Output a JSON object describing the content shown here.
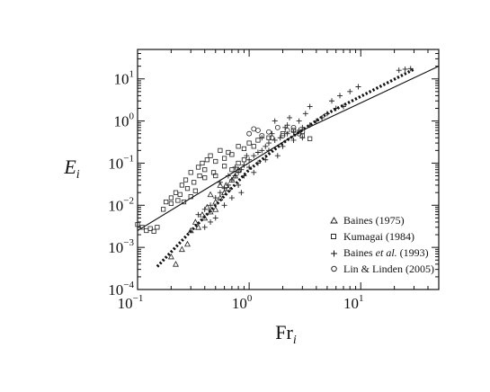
{
  "chart_data": {
    "type": "scatter",
    "xscale": "log",
    "yscale": "log",
    "xlim": [
      0.1,
      50
    ],
    "ylim": [
      0.0001,
      50
    ],
    "x_ticks": [
      {
        "value": 0.1,
        "base": "10",
        "exp": "−1"
      },
      {
        "value": 1,
        "base": "10",
        "exp": "0"
      },
      {
        "value": 10,
        "base": "10",
        "exp": "1"
      }
    ],
    "y_ticks": [
      {
        "value": 0.0001,
        "base": "10",
        "exp": "−4"
      },
      {
        "value": 0.001,
        "base": "10",
        "exp": "−3"
      },
      {
        "value": 0.01,
        "base": "10",
        "exp": "−2"
      },
      {
        "value": 0.1,
        "base": "10",
        "exp": "−1"
      },
      {
        "value": 1,
        "base": "10",
        "exp": "0"
      },
      {
        "value": 10,
        "base": "10",
        "exp": "1"
      }
    ],
    "xlabel": {
      "main": "Fr",
      "sub": "i"
    },
    "ylabel": {
      "main": "E",
      "sub": "i"
    },
    "legend": {
      "placement": "lower-right",
      "entries": [
        {
          "marker": "triangle",
          "text": "Baines (1975)"
        },
        {
          "marker": "square",
          "text": "Kumagai (1984)"
        },
        {
          "marker": "plus",
          "text_before": "Baines ",
          "text_em": "et al.",
          "text_after": " (1993)"
        },
        {
          "marker": "circle",
          "text": "Lin & Linden (2005)"
        }
      ]
    },
    "lines": [
      {
        "style": "solid",
        "x": [
          0.1,
          3,
          50
        ],
        "y": [
          0.0025,
          0.6,
          20
        ]
      },
      {
        "style": "dotted",
        "x": [
          0.15,
          0.5,
          1,
          2,
          5,
          30
        ],
        "y": [
          0.00035,
          0.01,
          0.07,
          0.3,
          1.5,
          17
        ]
      }
    ],
    "series": [
      {
        "marker": "triangle",
        "points": [
          [
            0.2,
            0.0006
          ],
          [
            0.22,
            0.0004
          ],
          [
            0.25,
            0.0009
          ],
          [
            0.28,
            0.0012
          ],
          [
            0.3,
            0.0025
          ],
          [
            0.33,
            0.004
          ],
          [
            0.35,
            0.003
          ],
          [
            0.38,
            0.006
          ],
          [
            0.4,
            0.005
          ],
          [
            0.42,
            0.009
          ],
          [
            0.45,
            0.007
          ],
          [
            0.5,
            0.012
          ],
          [
            0.55,
            0.015
          ],
          [
            0.6,
            0.02
          ],
          [
            0.62,
            0.03
          ],
          [
            0.65,
            0.025
          ],
          [
            0.7,
            0.04
          ],
          [
            0.75,
            0.05
          ],
          [
            0.8,
            0.07
          ],
          [
            0.45,
            0.018
          ],
          [
            0.5,
            0.008
          ],
          [
            0.55,
            0.03
          ]
        ]
      },
      {
        "marker": "square",
        "points": [
          [
            0.1,
            0.0035
          ],
          [
            0.11,
            0.003
          ],
          [
            0.12,
            0.0025
          ],
          [
            0.13,
            0.0028
          ],
          [
            0.14,
            0.0024
          ],
          [
            0.15,
            0.003
          ],
          [
            0.17,
            0.008
          ],
          [
            0.18,
            0.012
          ],
          [
            0.2,
            0.015
          ],
          [
            0.22,
            0.02
          ],
          [
            0.24,
            0.018
          ],
          [
            0.25,
            0.03
          ],
          [
            0.27,
            0.04
          ],
          [
            0.3,
            0.06
          ],
          [
            0.32,
            0.035
          ],
          [
            0.35,
            0.08
          ],
          [
            0.38,
            0.1
          ],
          [
            0.4,
            0.07
          ],
          [
            0.42,
            0.12
          ],
          [
            0.45,
            0.15
          ],
          [
            0.5,
            0.11
          ],
          [
            0.55,
            0.2
          ],
          [
            0.6,
            0.13
          ],
          [
            0.65,
            0.18
          ],
          [
            0.7,
            0.16
          ],
          [
            0.8,
            0.25
          ],
          [
            0.9,
            0.22
          ],
          [
            0.2,
            0.011
          ],
          [
            0.23,
            0.013
          ],
          [
            0.26,
            0.012
          ],
          [
            0.28,
            0.025
          ],
          [
            0.33,
            0.022
          ],
          [
            0.36,
            0.05
          ],
          [
            0.4,
            0.045
          ],
          [
            0.48,
            0.06
          ],
          [
            0.5,
            0.05
          ],
          [
            0.6,
            0.085
          ],
          [
            0.7,
            0.07
          ],
          [
            0.3,
            0.016
          ],
          [
            1.0,
            0.3
          ],
          [
            1.1,
            0.25
          ],
          [
            1.2,
            0.35
          ],
          [
            1.5,
            0.4
          ],
          [
            2.0,
            0.5
          ],
          [
            2.5,
            0.6
          ],
          [
            3.0,
            0.45
          ],
          [
            3.5,
            0.38
          ],
          [
            0.8,
            0.1
          ],
          [
            0.9,
            0.12
          ]
        ]
      },
      {
        "marker": "plus",
        "points": [
          [
            0.35,
            0.006
          ],
          [
            0.4,
            0.008
          ],
          [
            0.45,
            0.01
          ],
          [
            0.5,
            0.015
          ],
          [
            0.55,
            0.02
          ],
          [
            0.6,
            0.025
          ],
          [
            0.65,
            0.03
          ],
          [
            0.7,
            0.04
          ],
          [
            0.75,
            0.05
          ],
          [
            0.8,
            0.06
          ],
          [
            0.85,
            0.07
          ],
          [
            0.9,
            0.09
          ],
          [
            1.0,
            0.12
          ],
          [
            1.1,
            0.15
          ],
          [
            1.2,
            0.18
          ],
          [
            1.3,
            0.2
          ],
          [
            1.4,
            0.25
          ],
          [
            1.5,
            0.3
          ],
          [
            1.7,
            0.35
          ],
          [
            1.9,
            0.4
          ],
          [
            2.2,
            0.5
          ],
          [
            2.5,
            0.55
          ],
          [
            2.8,
            0.6
          ],
          [
            3.0,
            0.7
          ],
          [
            3.5,
            0.8
          ],
          [
            4.0,
            1.0
          ],
          [
            4.5,
            1.2
          ],
          [
            5.0,
            1.5
          ],
          [
            6.0,
            2.0
          ],
          [
            7.0,
            2.2
          ],
          [
            0.6,
            0.01
          ],
          [
            0.7,
            0.015
          ],
          [
            0.8,
            0.03
          ],
          [
            0.9,
            0.05
          ],
          [
            1.0,
            0.08
          ],
          [
            1.2,
            0.1
          ],
          [
            1.5,
            0.2
          ],
          [
            2.0,
            0.25
          ],
          [
            2.5,
            0.35
          ],
          [
            3.0,
            0.4
          ],
          [
            1.3,
            0.4
          ],
          [
            1.6,
            0.5
          ],
          [
            2.2,
            0.8
          ],
          [
            2.8,
            1.0
          ],
          [
            3.2,
            1.5
          ],
          [
            3.5,
            2.2
          ],
          [
            0.55,
            0.035
          ],
          [
            0.65,
            0.05
          ],
          [
            0.75,
            0.08
          ],
          [
            0.95,
            0.15
          ],
          [
            1.1,
            0.06
          ],
          [
            1.4,
            0.12
          ],
          [
            1.8,
            0.15
          ],
          [
            2.1,
            0.7
          ],
          [
            0.5,
            0.005
          ],
          [
            0.45,
            0.004
          ],
          [
            0.4,
            0.003
          ],
          [
            0.85,
            0.02
          ],
          [
            5.5,
            3.0
          ],
          [
            6.5,
            4.0
          ],
          [
            8.0,
            5.0
          ],
          [
            9.5,
            6.5
          ],
          [
            22,
            16
          ],
          [
            25,
            17
          ],
          [
            28,
            17.5
          ],
          [
            1.7,
            1.0
          ],
          [
            2.3,
            1.2
          ]
        ]
      },
      {
        "marker": "circle",
        "points": [
          [
            1.0,
            0.5
          ],
          [
            1.2,
            0.6
          ],
          [
            1.5,
            0.55
          ],
          [
            1.8,
            0.7
          ],
          [
            2.0,
            0.45
          ],
          [
            2.2,
            0.6
          ],
          [
            2.5,
            0.7
          ],
          [
            2.8,
            0.5
          ],
          [
            3.0,
            0.55
          ],
          [
            1.3,
            0.45
          ],
          [
            1.6,
            0.4
          ],
          [
            1.1,
            0.65
          ]
        ]
      }
    ]
  }
}
